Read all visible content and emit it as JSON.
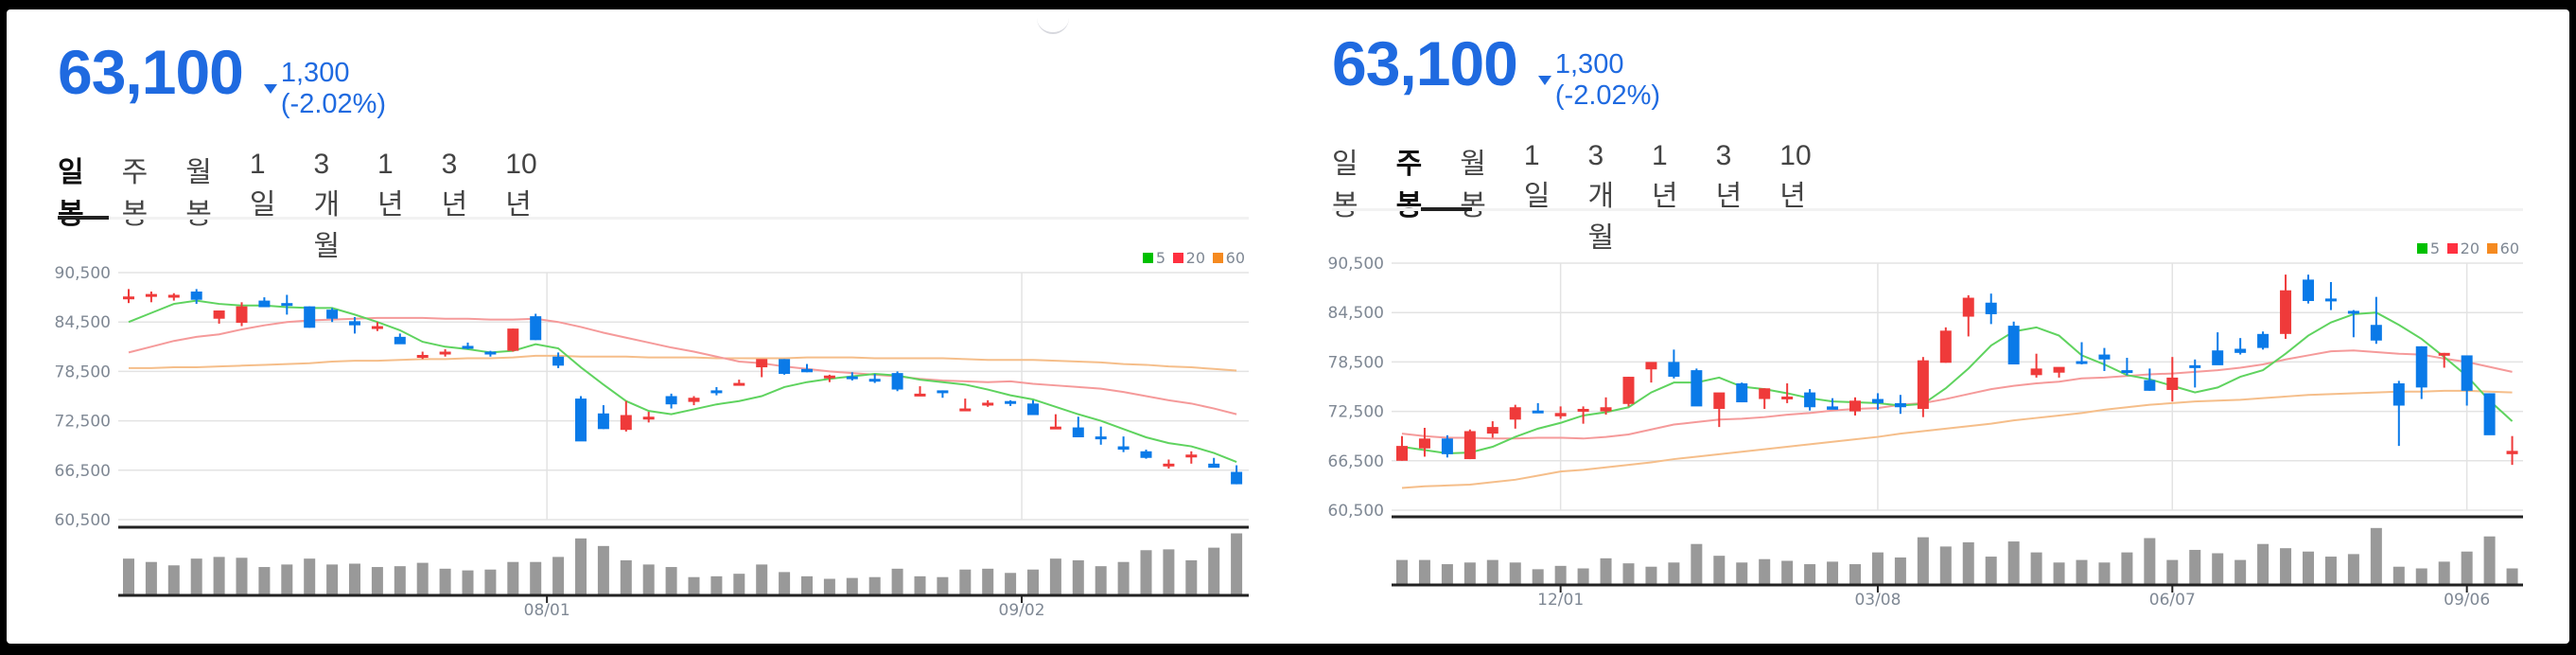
{
  "panels": [
    {
      "id": "daily",
      "price": "63,100",
      "change_arrow": "down-triangle-icon",
      "change_text": "1,300 (-2.02%)",
      "tabs": [
        "일봉",
        "주봉",
        "월봉",
        "1일",
        "3개월",
        "1년",
        "3년",
        "10년"
      ],
      "active_tab": 0
    },
    {
      "id": "weekly",
      "price": "63,100",
      "change_arrow": "down-triangle-icon",
      "change_text": "1,300 (-2.02%)",
      "tabs": [
        "일봉",
        "주봉",
        "월봉",
        "1일",
        "3개월",
        "1년",
        "3년",
        "10년"
      ],
      "active_tab": 1
    }
  ],
  "colors": {
    "price_blue": "#1f6ae0",
    "candle_up": "#ef3a3a",
    "candle_down": "#0a7ae8",
    "ma5": "#5fd35f",
    "ma20": "#f59a9a",
    "ma60": "#f5be8a",
    "legend_ma5": "#00c000",
    "legend_ma20": "#ff3040",
    "legend_ma60": "#f58a20",
    "volume": "#999999",
    "grid": "#e3e3e3",
    "axis_text": "#7f8894"
  },
  "chart_data": [
    {
      "type": "candlestick",
      "title": "일봉",
      "y_ticks": [
        90500,
        84500,
        78500,
        72500,
        66500,
        60500
      ],
      "y_tick_labels": [
        "90,500",
        "84,500",
        "78,500",
        "72,500",
        "66,500",
        "60,500"
      ],
      "ylim": [
        60500,
        90500
      ],
      "x_ticks": [
        {
          "index": 18.5,
          "label": "08/01"
        },
        {
          "index": 39.5,
          "label": "09/02"
        }
      ],
      "legend": [
        "5",
        "20",
        "60"
      ],
      "candles": [
        [
          87600,
          88500,
          86800,
          87600
        ],
        [
          87900,
          88200,
          86900,
          87900
        ],
        [
          87800,
          88000,
          87100,
          87800
        ],
        [
          88200,
          88500,
          86700,
          87200
        ],
        [
          84900,
          85200,
          84300,
          85900
        ],
        [
          84400,
          86900,
          84000,
          86400
        ],
        [
          87100,
          87500,
          86700,
          86300
        ],
        [
          86800,
          87800,
          85400,
          86600
        ],
        [
          86400,
          86400,
          83800,
          83800
        ],
        [
          86000,
          86200,
          84500,
          84900
        ],
        [
          84600,
          85100,
          83100,
          84100
        ],
        [
          84000,
          84500,
          83400,
          84000
        ],
        [
          82700,
          83100,
          81900,
          81800
        ],
        [
          80500,
          80900,
          80000,
          80500
        ],
        [
          80700,
          81200,
          80300,
          80900
        ],
        [
          81600,
          82000,
          81200,
          81400
        ],
        [
          80900,
          81000,
          80300,
          80600
        ],
        [
          81000,
          83700,
          80900,
          83700
        ],
        [
          85200,
          85500,
          82300,
          82300
        ],
        [
          80300,
          80800,
          78900,
          79200
        ],
        [
          75200,
          75500,
          72800,
          70000
        ],
        [
          73400,
          74400,
          71500,
          71500
        ],
        [
          71400,
          74900,
          71200,
          73200
        ],
        [
          73000,
          73600,
          72300,
          73000
        ],
        [
          75500,
          75800,
          74000,
          74500
        ],
        [
          74800,
          75500,
          74400,
          75300
        ],
        [
          76200,
          76600,
          75600,
          76000
        ],
        [
          77100,
          77500,
          76800,
          77100
        ],
        [
          79000,
          79400,
          77800,
          80000
        ],
        [
          80000,
          80000,
          78100,
          78200
        ],
        [
          78800,
          79400,
          78400,
          78400
        ],
        [
          77700,
          78100,
          77200,
          78000
        ],
        [
          77900,
          78400,
          77400,
          77800
        ],
        [
          77600,
          78200,
          77100,
          77400
        ],
        [
          78300,
          78500,
          76100,
          76300
        ],
        [
          75500,
          76700,
          75500,
          75800
        ],
        [
          76200,
          76200,
          75300,
          76000
        ],
        [
          74000,
          75200,
          73800,
          74000
        ],
        [
          74600,
          75000,
          74200,
          74700
        ],
        [
          74900,
          75000,
          74300,
          74800
        ],
        [
          74600,
          75000,
          73200,
          73200
        ],
        [
          71600,
          73300,
          71600,
          71800
        ],
        [
          71700,
          73000,
          70700,
          70500
        ],
        [
          70600,
          71800,
          69600,
          70400
        ],
        [
          69400,
          70600,
          68700,
          69000
        ],
        [
          68800,
          69000,
          67900,
          68000
        ],
        [
          67200,
          67800,
          66700,
          67300
        ],
        [
          68100,
          68800,
          67300,
          68400
        ],
        [
          67300,
          68000,
          66900,
          66800
        ],
        [
          66300,
          67100,
          64800,
          64800
        ]
      ],
      "ma5": [
        84500,
        85600,
        86700,
        87100,
        86700,
        86500,
        86500,
        86300,
        86200,
        86200,
        85400,
        84500,
        83500,
        82100,
        81500,
        81200,
        80800,
        81000,
        81800,
        81300,
        79000,
        76900,
        74900,
        73700,
        73300,
        73900,
        74500,
        74900,
        75500,
        76600,
        77200,
        77600,
        77900,
        78200,
        78000,
        77500,
        77200,
        76900,
        76300,
        75600,
        75100,
        74200,
        73300,
        72500,
        71500,
        70500,
        69800,
        69400,
        68600,
        67500
      ],
      "ma20": [
        80800,
        81500,
        82200,
        82700,
        83000,
        83600,
        84100,
        84500,
        84700,
        84800,
        84900,
        85000,
        85000,
        85000,
        84900,
        84900,
        84800,
        84800,
        84900,
        84500,
        83900,
        83200,
        82600,
        82000,
        81400,
        80900,
        80300,
        79700,
        79500,
        79100,
        78800,
        78500,
        78300,
        78100,
        77900,
        77600,
        77400,
        77300,
        77200,
        77300,
        77000,
        76800,
        76600,
        76400,
        76000,
        75500,
        75000,
        74600,
        74000,
        73300
      ],
      "ma60": [
        78900,
        78900,
        79000,
        79000,
        79100,
        79200,
        79300,
        79400,
        79500,
        79700,
        79800,
        79800,
        79900,
        80000,
        80000,
        80100,
        80100,
        80200,
        80400,
        80400,
        80300,
        80300,
        80300,
        80200,
        80200,
        80200,
        80100,
        80100,
        80100,
        80100,
        80200,
        80200,
        80200,
        80100,
        80100,
        80100,
        80100,
        80000,
        79900,
        79900,
        79900,
        79800,
        79700,
        79600,
        79400,
        79300,
        79100,
        79000,
        78800,
        78600
      ],
      "volume": [
        42,
        38,
        34,
        42,
        44,
        43,
        32,
        35,
        42,
        35,
        36,
        32,
        33,
        37,
        30,
        28,
        29,
        38,
        38,
        44,
        66,
        57,
        40,
        35,
        32,
        20,
        21,
        24,
        35,
        26,
        21,
        18,
        19,
        20,
        30,
        21,
        20,
        29,
        30,
        25,
        29,
        42,
        40,
        33,
        38,
        52,
        53,
        40,
        55,
        72
      ]
    },
    {
      "type": "candlestick",
      "title": "주봉",
      "y_ticks": [
        90500,
        84500,
        78500,
        72500,
        66500,
        60500
      ],
      "y_tick_labels": [
        "90,500",
        "84,500",
        "78,500",
        "72,500",
        "66,500",
        "60,500"
      ],
      "ylim": [
        60500,
        90500
      ],
      "x_ticks": [
        {
          "index": 7,
          "label": "12/01"
        },
        {
          "index": 21,
          "label": "03/08"
        },
        {
          "index": 34,
          "label": "06/07"
        },
        {
          "index": 47,
          "label": "09/06"
        }
      ],
      "legend": [
        "5",
        "20",
        "60"
      ],
      "candles": [
        [
          66500,
          69500,
          66500,
          68300
        ],
        [
          68000,
          70500,
          67000,
          69200
        ],
        [
          69200,
          69600,
          66900,
          67300
        ],
        [
          66700,
          70300,
          66700,
          70100
        ],
        [
          69800,
          71300,
          69300,
          70600
        ],
        [
          71500,
          73300,
          70400,
          73000
        ],
        [
          72600,
          73500,
          72300,
          72300
        ],
        [
          71900,
          73100,
          71600,
          72300
        ],
        [
          72800,
          73100,
          71000,
          72800
        ],
        [
          72500,
          74200,
          72100,
          73000
        ],
        [
          73400,
          76700,
          73100,
          76700
        ],
        [
          77600,
          77800,
          76000,
          78500
        ],
        [
          78500,
          80000,
          76500,
          76700
        ],
        [
          77500,
          77700,
          73200,
          73100
        ],
        [
          72800,
          74700,
          70600,
          74800
        ],
        [
          75900,
          76000,
          73600,
          73600
        ],
        [
          74000,
          75300,
          72800,
          75300
        ],
        [
          74300,
          75900,
          73500,
          74300
        ],
        [
          74800,
          75200,
          72600,
          73000
        ],
        [
          73100,
          74100,
          72900,
          72700
        ],
        [
          72500,
          74200,
          72000,
          73800
        ],
        [
          74000,
          74700,
          72700,
          73500
        ],
        [
          73500,
          74500,
          72200,
          73000
        ],
        [
          72800,
          79100,
          71800,
          78700
        ],
        [
          78400,
          82700,
          78400,
          82300
        ],
        [
          84000,
          86600,
          81600,
          86300
        ],
        [
          85700,
          86800,
          83100,
          84300
        ],
        [
          82900,
          83400,
          78200,
          78200
        ],
        [
          76900,
          79500,
          76600,
          77700
        ],
        [
          77200,
          77700,
          76600,
          77900
        ],
        [
          78600,
          80900,
          78200,
          78300
        ],
        [
          79400,
          80200,
          77400,
          78800
        ],
        [
          77500,
          79000,
          76900,
          77300
        ],
        [
          76300,
          77700,
          75000,
          75000
        ],
        [
          75100,
          79100,
          73700,
          76600
        ],
        [
          78100,
          78800,
          75400,
          77800
        ],
        [
          79900,
          82100,
          78600,
          78100
        ],
        [
          80100,
          81400,
          79400,
          79600
        ],
        [
          81900,
          82200,
          80000,
          80200
        ],
        [
          81900,
          89100,
          81300,
          87200
        ],
        [
          88500,
          89100,
          85600,
          85900
        ],
        [
          86200,
          88200,
          84800,
          86000
        ],
        [
          84700,
          84800,
          81500,
          84500
        ],
        [
          83000,
          86400,
          80700,
          81100
        ],
        [
          75900,
          76200,
          68300,
          73200
        ],
        [
          80400,
          80400,
          74000,
          75400
        ],
        [
          79600,
          79600,
          77800,
          79600
        ],
        [
          79300,
          79100,
          73200,
          75000
        ],
        [
          74700,
          74700,
          69700,
          69600
        ],
        [
          67300,
          69500,
          66000,
          67700
        ]
      ],
      "ma5": [
        68200,
        67800,
        67400,
        67500,
        68200,
        69400,
        70400,
        71100,
        72000,
        72400,
        73000,
        74800,
        76000,
        76000,
        76600,
        75500,
        75200,
        74700,
        74100,
        73700,
        73600,
        73500,
        73200,
        73400,
        75300,
        77700,
        80500,
        82200,
        82700,
        81700,
        79300,
        78200,
        76900,
        76400,
        75600,
        74800,
        75400,
        76700,
        77500,
        79500,
        81700,
        83300,
        84300,
        84500,
        83000,
        81300,
        79100,
        76800,
        73800,
        71300
      ],
      "ma20": [
        69800,
        69500,
        69300,
        69300,
        69200,
        69200,
        69300,
        69300,
        69200,
        69400,
        69700,
        70300,
        70900,
        71200,
        71500,
        71600,
        71800,
        72100,
        72300,
        72600,
        72800,
        72900,
        73300,
        73500,
        74000,
        74600,
        75200,
        75600,
        75900,
        76100,
        76500,
        76600,
        76800,
        77000,
        77100,
        77300,
        77500,
        77800,
        78200,
        78800,
        79300,
        79800,
        79900,
        79700,
        79500,
        79400,
        78900,
        78500,
        77900,
        77300
      ],
      "ma60": [
        63200,
        63400,
        63500,
        63600,
        63900,
        64200,
        64700,
        65200,
        65400,
        65700,
        66000,
        66300,
        66700,
        67000,
        67300,
        67600,
        67900,
        68200,
        68500,
        68800,
        69100,
        69400,
        69800,
        70100,
        70400,
        70700,
        71000,
        71400,
        71700,
        72000,
        72300,
        72700,
        73000,
        73300,
        73500,
        73700,
        73800,
        73900,
        74100,
        74300,
        74500,
        74600,
        74700,
        74800,
        74900,
        74900,
        75000,
        75000,
        74900,
        74800
      ],
      "volume": [
        28,
        28,
        23,
        25,
        28,
        25,
        17,
        21,
        18,
        30,
        24,
        20,
        25,
        47,
        33,
        25,
        29,
        27,
        23,
        26,
        23,
        37,
        31,
        55,
        44,
        49,
        32,
        50,
        37,
        25,
        28,
        25,
        37,
        54,
        28,
        40,
        36,
        28,
        47,
        42,
        38,
        32,
        35,
        66,
        20,
        18,
        26,
        38,
        56,
        18
      ]
    }
  ]
}
